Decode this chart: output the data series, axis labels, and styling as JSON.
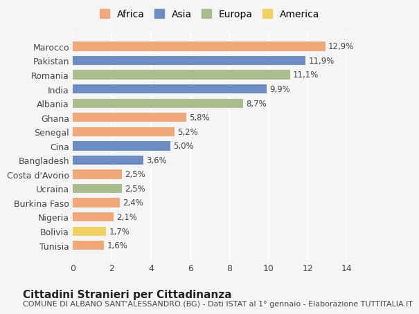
{
  "categories": [
    "Marocco",
    "Pakistan",
    "Romania",
    "India",
    "Albania",
    "Ghana",
    "Senegal",
    "Cina",
    "Bangladesh",
    "Costa d'Avorio",
    "Ucraina",
    "Burkina Faso",
    "Nigeria",
    "Bolivia",
    "Tunisia"
  ],
  "values": [
    12.9,
    11.9,
    11.1,
    9.9,
    8.7,
    5.8,
    5.2,
    5.0,
    3.6,
    2.5,
    2.5,
    2.4,
    2.1,
    1.7,
    1.6
  ],
  "labels": [
    "12,9%",
    "11,9%",
    "11,1%",
    "9,9%",
    "8,7%",
    "5,8%",
    "5,2%",
    "5,0%",
    "3,6%",
    "2,5%",
    "2,5%",
    "2,4%",
    "2,1%",
    "1,7%",
    "1,6%"
  ],
  "continents": [
    "Africa",
    "Asia",
    "Europa",
    "Asia",
    "Europa",
    "Africa",
    "Africa",
    "Asia",
    "Asia",
    "Africa",
    "Europa",
    "Africa",
    "Africa",
    "America",
    "Africa"
  ],
  "colors": {
    "Africa": "#F0A878",
    "Asia": "#6B8DC4",
    "Europa": "#A8BC8C",
    "America": "#F0D060"
  },
  "legend_order": [
    "Africa",
    "Asia",
    "Europa",
    "America"
  ],
  "title": "Cittadini Stranieri per Cittadinanza",
  "subtitle": "COMUNE DI ALBANO SANT'ALESSANDRO (BG) - Dati ISTAT al 1° gennaio - Elaborazione TUTTITALIA.IT",
  "xlabel": "",
  "xlim": [
    0,
    14
  ],
  "xticks": [
    0,
    2,
    4,
    6,
    8,
    10,
    12,
    14
  ],
  "background_color": "#f5f5f5",
  "grid_color": "#ffffff",
  "bar_height": 0.65,
  "title_fontsize": 11,
  "subtitle_fontsize": 8,
  "tick_fontsize": 9,
  "label_fontsize": 8.5,
  "legend_fontsize": 10
}
